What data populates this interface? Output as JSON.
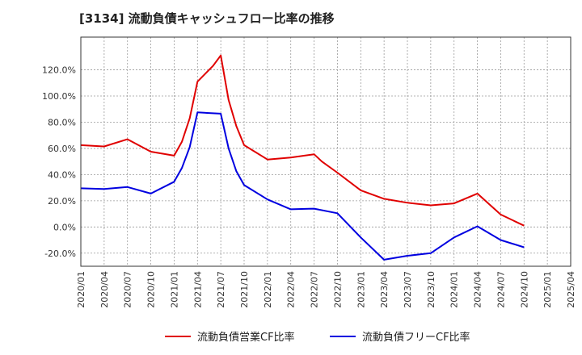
{
  "title": "[3134]  流動負債キャッシュフロー比率の推移",
  "chart_data": {
    "type": "line",
    "title": "[3134]  流動負債キャッシュフロー比率の推移",
    "xlabel": "",
    "ylabel": "",
    "grid": true,
    "legend_position": "bottom",
    "ylim": [
      -30,
      145
    ],
    "y_ticks": [
      -20,
      0,
      20,
      40,
      60,
      80,
      100,
      120
    ],
    "y_tick_labels": [
      "-20.0%",
      "0.0%",
      "20.0%",
      "40.0%",
      "60.0%",
      "80.0%",
      "100.0%",
      "120.0%"
    ],
    "x_tick_labels": [
      "2020/01",
      "2020/04",
      "2020/07",
      "2020/10",
      "2021/01",
      "2021/04",
      "2021/07",
      "2021/10",
      "2022/01",
      "2022/04",
      "2022/07",
      "2022/10",
      "2023/01",
      "2023/04",
      "2023/07",
      "2023/10",
      "2024/01",
      "2024/04",
      "2024/07",
      "2024/10",
      "2025/01",
      "2025/04"
    ],
    "series": [
      {
        "name": "流動負債営業CF比率",
        "color": "#e00000",
        "points": [
          [
            "2020/01",
            62.5
          ],
          [
            "2020/04",
            61.5
          ],
          [
            "2020/07",
            67.0
          ],
          [
            "2020/10",
            57.5
          ],
          [
            "2021/01",
            54.5
          ],
          [
            "2021/02",
            65.0
          ],
          [
            "2021/03",
            83.0
          ],
          [
            "2021/04",
            111.0
          ],
          [
            "2021/05",
            117.0
          ],
          [
            "2021/06",
            123.0
          ],
          [
            "2021/07",
            131.0
          ],
          [
            "2021/08",
            97.0
          ],
          [
            "2021/09",
            77.0
          ],
          [
            "2021/10",
            62.5
          ],
          [
            "2022/01",
            51.5
          ],
          [
            "2022/04",
            53.0
          ],
          [
            "2022/07",
            55.5
          ],
          [
            "2022/08",
            50.0
          ],
          [
            "2022/10",
            41.5
          ],
          [
            "2023/01",
            28.0
          ],
          [
            "2023/04",
            21.5
          ],
          [
            "2023/07",
            18.5
          ],
          [
            "2023/10",
            16.5
          ],
          [
            "2024/01",
            18.0
          ],
          [
            "2024/04",
            25.5
          ],
          [
            "2024/07",
            9.5
          ],
          [
            "2024/10",
            1.0
          ]
        ]
      },
      {
        "name": "流動負債フリーCF比率",
        "color": "#0000e0",
        "points": [
          [
            "2020/01",
            29.5
          ],
          [
            "2020/04",
            29.0
          ],
          [
            "2020/07",
            30.5
          ],
          [
            "2020/10",
            25.5
          ],
          [
            "2021/01",
            34.5
          ],
          [
            "2021/02",
            45.0
          ],
          [
            "2021/03",
            61.0
          ],
          [
            "2021/04",
            87.5
          ],
          [
            "2021/07",
            86.5
          ],
          [
            "2021/08",
            60.0
          ],
          [
            "2021/09",
            42.5
          ],
          [
            "2021/10",
            32.0
          ],
          [
            "2022/01",
            21.0
          ],
          [
            "2022/04",
            13.5
          ],
          [
            "2022/07",
            14.0
          ],
          [
            "2022/10",
            10.5
          ],
          [
            "2023/01",
            -8.0
          ],
          [
            "2023/04",
            -25.0
          ],
          [
            "2023/07",
            -22.0
          ],
          [
            "2023/10",
            -20.0
          ],
          [
            "2024/01",
            -8.0
          ],
          [
            "2024/04",
            0.5
          ],
          [
            "2024/07",
            -10.0
          ],
          [
            "2024/10",
            -15.5
          ]
        ]
      }
    ]
  }
}
